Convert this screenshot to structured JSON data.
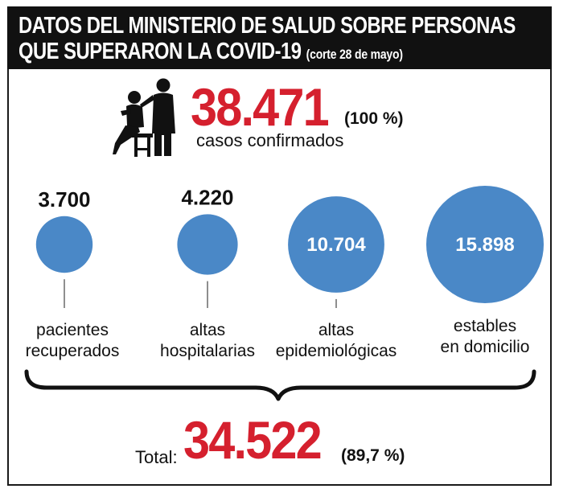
{
  "header": {
    "title_line1": "DATOS DEL MINISTERIO DE SALUD SOBRE PERSONAS",
    "title_line2": "QUE SUPERARON LA COVID-19",
    "title_note": "(corte 28 de mayo)",
    "background_color": "#111111"
  },
  "confirmed": {
    "value": "38.471",
    "percent": "(100 %)",
    "label": "casos confirmados",
    "icon": "doctor-patient-icon"
  },
  "summary": {
    "label": "Total:",
    "value": "34.522",
    "percent": "(89,7 %)"
  },
  "colors": {
    "bubble": "#4a88c7",
    "highlight_red": "#d5202e",
    "text": "#111111"
  },
  "chart_data": {
    "type": "bubble",
    "title": "",
    "categories": [
      "pacientes recuperados",
      "altas hospitalarias",
      "altas epidemiológicas",
      "estables en domicilio"
    ],
    "values": [
      3700,
      4220,
      10704,
      15898
    ],
    "value_labels": [
      "3.700",
      "4.220",
      "10.704",
      "15.898"
    ],
    "label_lines": [
      [
        "pacientes",
        "recuperados"
      ],
      [
        "altas",
        "hospitalarias"
      ],
      [
        "altas",
        "epidemiológicas"
      ],
      [
        "estables",
        "en domicilio"
      ]
    ],
    "value_label_position": [
      "above",
      "above",
      "inside",
      "inside"
    ]
  }
}
